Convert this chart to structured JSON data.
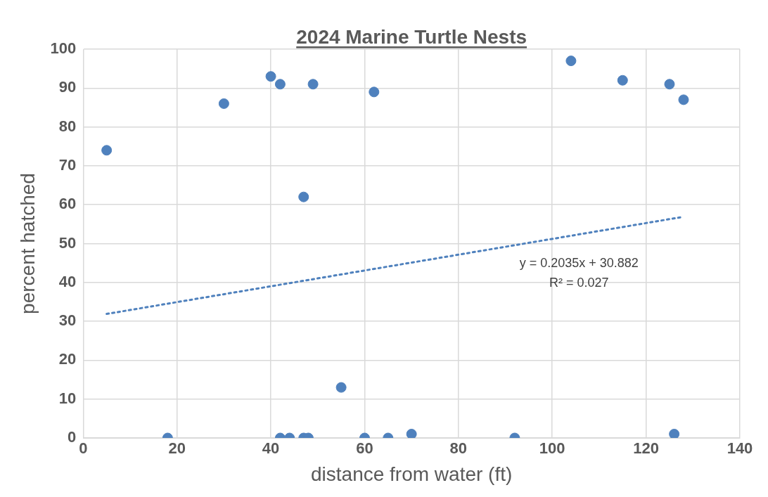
{
  "chart_data": {
    "type": "scatter",
    "title": "2024 Marine Turtle Nests",
    "xlabel": "distance from water (ft)",
    "ylabel": "percent hatched",
    "annotations": [
      "y = 0.2035x + 30.882",
      "R² = 0.027"
    ],
    "series": [
      {
        "type": "scatter",
        "color": "#4f81bd",
        "marker": "circle",
        "x": [
          5,
          18,
          30,
          40,
          42,
          42,
          44,
          47,
          47,
          48,
          49,
          55,
          60,
          62,
          65,
          70,
          92,
          104,
          115,
          125,
          126,
          128
        ],
        "values": [
          74,
          0,
          86,
          93,
          91,
          0,
          0,
          62,
          0,
          0,
          91,
          13,
          0,
          89,
          0,
          1,
          0,
          97,
          92,
          91,
          1,
          87
        ]
      },
      {
        "type": "line",
        "color": "#4f81bd",
        "marker": "none",
        "line_style": "dotted",
        "x": [
          5,
          128
        ],
        "values": [
          31.9,
          56.9
        ]
      }
    ],
    "xlim": [
      0,
      140
    ],
    "xticks": [
      0,
      20,
      40,
      60,
      80,
      100,
      120,
      140
    ],
    "ylim": [
      0,
      100
    ],
    "yticks": [
      0,
      10,
      20,
      30,
      40,
      50,
      60,
      70,
      80,
      90,
      100
    ],
    "grid": true,
    "legend": false
  }
}
